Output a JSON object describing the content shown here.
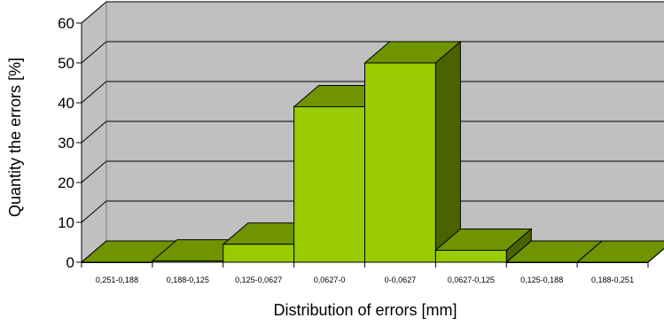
{
  "chart_data": {
    "type": "bar",
    "style": "3d",
    "title": "",
    "xlabel": "Distribution of errors [mm]",
    "ylabel": "Quantity the errors [%]",
    "ylim": [
      0,
      60
    ],
    "yticks": [
      "0",
      "10",
      "20",
      "30",
      "40",
      "50",
      "60"
    ],
    "grid": true,
    "legend": "none",
    "categories": [
      "0,251-0,188",
      "0,188-0,125",
      "0,125-0,0627",
      "0,0627-0",
      "0-0,0627",
      "0,0627-0,125",
      "0,125-0,188",
      "0,188-0,251"
    ],
    "values": [
      0,
      0.3,
      4.5,
      39,
      50,
      3,
      0,
      0
    ],
    "colors": {
      "bar_front": "#99CC00",
      "bar_top": "#6F9400",
      "bar_side": "#4A6300",
      "wall": "#C0C0C0",
      "floor": "#808080",
      "gridline": "#000000"
    }
  }
}
